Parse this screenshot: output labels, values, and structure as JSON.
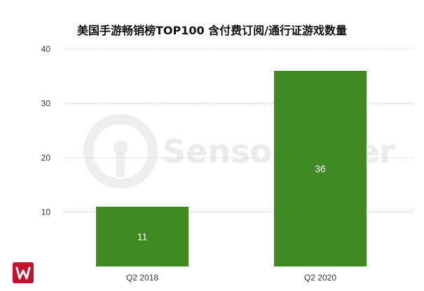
{
  "chart_data": {
    "type": "bar",
    "title": "美国手游畅销榜TOP100  含付费订阅/通行证游戏数量",
    "categories": [
      "Q2  2018",
      "Q2  2020"
    ],
    "values": [
      11,
      36
    ],
    "ylim": [
      0,
      40
    ],
    "yticks": [
      10,
      20,
      30,
      40
    ],
    "xlabel": "",
    "ylabel": "",
    "grid": true,
    "legend": "none",
    "bar_color": "#3f8a23",
    "data_labels": [
      "11",
      "36"
    ]
  },
  "watermark": {
    "text": "SensorTower"
  }
}
